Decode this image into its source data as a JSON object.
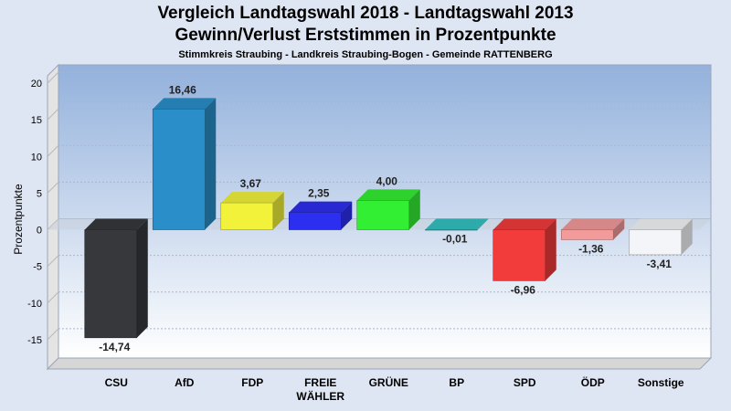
{
  "chart_data": {
    "type": "bar",
    "title": "Vergleich Landtagswahl 2018 - Landtagswahl 2013",
    "subtitle": "Gewinn/Verlust Erststimmen in Prozentpunkte",
    "subtitle2": "Stimmkreis Straubing - Landkreis Straubing-Bogen - Gemeinde RATTENBERG",
    "ylabel": "Prozentpunkte",
    "xlabel": "",
    "ylim": [
      -19,
      21
    ],
    "yticks": [
      20,
      15,
      10,
      5,
      0,
      -5,
      -10,
      -15
    ],
    "grid": true,
    "categories": [
      [
        "CSU"
      ],
      [
        "AfD"
      ],
      [
        "FDP"
      ],
      [
        "FREIE",
        "WÄHLER"
      ],
      [
        "GRÜNE"
      ],
      [
        "BP"
      ],
      [
        "SPD"
      ],
      [
        "ÖDP"
      ],
      [
        "Sonstige"
      ]
    ],
    "values": [
      -14.74,
      16.46,
      3.67,
      2.35,
      4.0,
      -0.01,
      -6.96,
      -1.36,
      -3.41
    ],
    "value_labels": [
      "-14,74",
      "16,46",
      "3,67",
      "2,35",
      "4,00",
      "-0,01",
      "-6,96",
      "-1,36",
      "-3,41"
    ],
    "colors": [
      "#36383c",
      "#2a8fc9",
      "#f2f23a",
      "#2d2ff0",
      "#33ef33",
      "#33c2c2",
      "#f23b3b",
      "#f39a9a",
      "#f4f5f8"
    ]
  }
}
